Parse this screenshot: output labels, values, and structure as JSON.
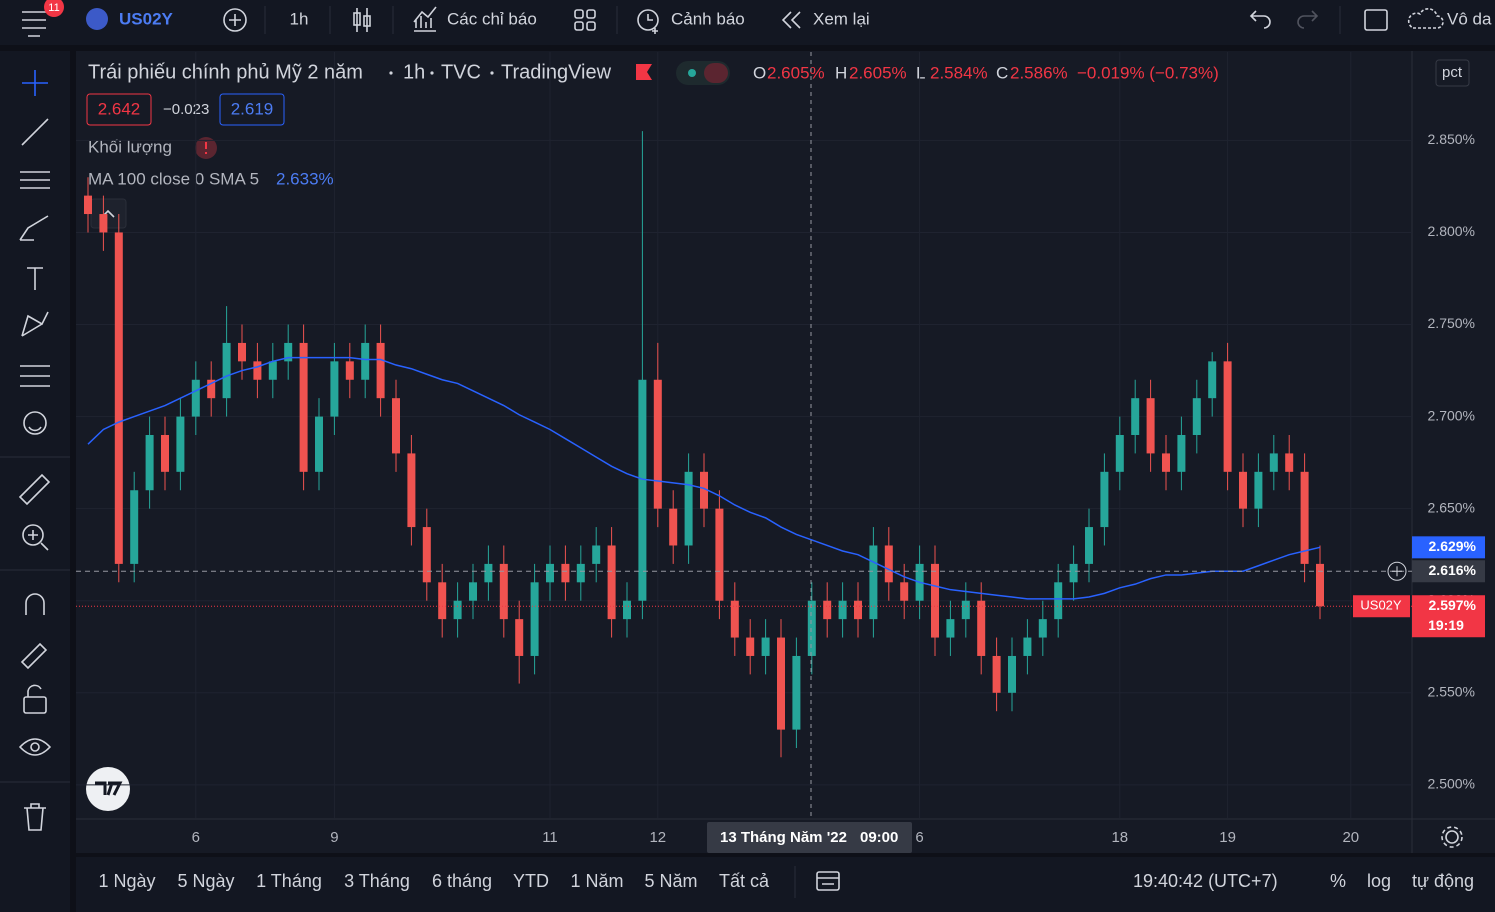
{
  "toolbar": {
    "badge": "11",
    "symbol": "US02Y",
    "interval": "1h",
    "indicators": "Các chỉ báo",
    "alerts": "Cảnh báo",
    "replay": "Xem lại",
    "layout": "Vô da"
  },
  "legend": {
    "title": "Trái phiếu chính phủ Mỹ 2 năm",
    "interval": "1h",
    "exchange": "TVC",
    "source": "TradingView",
    "ohlc": [
      {
        "key": "O",
        "text": "2.605%"
      },
      {
        "key": "H",
        "text": "2.605%"
      },
      {
        "key": "L",
        "text": "2.584%"
      },
      {
        "key": "C",
        "text": "2.586%"
      }
    ],
    "change": "−0.019% (−0.73%)",
    "bid": "2.642",
    "spread": "−0.023",
    "ask": "2.619",
    "volume": "Khối lượng",
    "ma_value": "2.633%",
    "unit": "pct"
  },
  "chart_data": {
    "type": "candlestick",
    "categories": [
      null,
      null,
      null,
      null,
      null,
      null,
      null,
      "6",
      null,
      null,
      null,
      null,
      null,
      null,
      null,
      null,
      "9",
      null,
      null,
      null,
      null,
      null,
      null,
      null,
      null,
      null,
      null,
      null,
      null,
      null,
      "11",
      null,
      null,
      null,
      null,
      null,
      null,
      "12",
      null,
      null,
      null,
      null,
      null,
      null,
      null,
      null,
      null,
      null,
      null,
      null,
      null,
      null,
      null,
      null,
      "6",
      null,
      null,
      null,
      null,
      null,
      null,
      null,
      null,
      null,
      null,
      null,
      null,
      "18",
      null,
      null,
      null,
      null,
      null,
      null,
      "19",
      null,
      null,
      null,
      null,
      null,
      null,
      null,
      "20"
    ],
    "open": [
      2.82,
      2.81,
      2.8,
      2.62,
      2.66,
      2.69,
      2.67,
      2.7,
      2.72,
      2.71,
      2.74,
      2.73,
      2.72,
      2.73,
      2.74,
      2.67,
      2.7,
      2.73,
      2.72,
      2.74,
      2.71,
      2.68,
      2.64,
      2.61,
      2.59,
      2.6,
      2.61,
      2.62,
      2.59,
      2.57,
      2.61,
      2.62,
      2.61,
      2.62,
      2.63,
      2.59,
      2.6,
      2.72,
      2.65,
      2.63,
      2.67,
      2.65,
      2.6,
      2.58,
      2.57,
      2.58,
      2.53,
      2.57,
      2.6,
      2.59,
      2.6,
      2.59,
      2.63,
      2.61,
      2.6,
      2.62,
      2.58,
      2.59,
      2.6,
      2.57,
      2.55,
      2.57,
      2.58,
      2.59,
      2.61,
      2.62,
      2.64,
      2.67,
      2.69,
      2.71,
      2.68,
      2.67,
      2.69,
      2.71,
      2.73,
      2.67,
      2.65,
      2.67,
      2.68,
      2.67,
      2.62,
      null,
      null
    ],
    "high": [
      2.83,
      2.82,
      2.81,
      2.67,
      2.7,
      2.7,
      2.71,
      2.73,
      2.73,
      2.76,
      2.75,
      2.74,
      2.74,
      2.75,
      2.75,
      2.71,
      2.74,
      2.74,
      2.75,
      2.75,
      2.72,
      2.69,
      2.65,
      2.62,
      2.61,
      2.62,
      2.63,
      2.63,
      2.6,
      2.62,
      2.63,
      2.63,
      2.63,
      2.64,
      2.64,
      2.61,
      2.855,
      2.74,
      2.66,
      2.68,
      2.68,
      2.66,
      2.61,
      2.59,
      2.59,
      2.59,
      2.58,
      2.61,
      2.61,
      2.61,
      2.61,
      2.64,
      2.64,
      2.62,
      2.63,
      2.63,
      2.6,
      2.61,
      2.61,
      2.58,
      2.58,
      2.59,
      2.6,
      2.62,
      2.63,
      2.65,
      2.68,
      2.7,
      2.72,
      2.72,
      2.69,
      2.7,
      2.72,
      2.735,
      2.74,
      2.68,
      2.68,
      2.69,
      2.69,
      2.68,
      2.63,
      null,
      null
    ],
    "low": [
      2.8,
      2.79,
      2.61,
      2.61,
      2.65,
      2.66,
      2.66,
      2.69,
      2.7,
      2.7,
      2.72,
      2.71,
      2.71,
      2.72,
      2.66,
      2.66,
      2.69,
      2.71,
      2.71,
      2.7,
      2.67,
      2.63,
      2.6,
      2.58,
      2.58,
      2.59,
      2.6,
      2.58,
      2.555,
      2.56,
      2.6,
      2.6,
      2.6,
      2.61,
      2.58,
      2.58,
      2.59,
      2.64,
      2.62,
      2.62,
      2.64,
      2.59,
      2.57,
      2.56,
      2.56,
      2.515,
      2.52,
      2.56,
      2.58,
      2.58,
      2.58,
      2.58,
      2.6,
      2.59,
      2.59,
      2.57,
      2.57,
      2.58,
      2.56,
      2.54,
      2.54,
      2.56,
      2.57,
      2.58,
      2.6,
      2.61,
      2.63,
      2.66,
      2.68,
      2.67,
      2.66,
      2.66,
      2.68,
      2.7,
      2.66,
      2.64,
      2.64,
      2.66,
      2.66,
      2.61,
      2.59,
      null,
      null
    ],
    "close": [
      2.81,
      2.8,
      2.62,
      2.66,
      2.69,
      2.67,
      2.7,
      2.72,
      2.71,
      2.74,
      2.73,
      2.72,
      2.73,
      2.74,
      2.67,
      2.7,
      2.73,
      2.72,
      2.74,
      2.71,
      2.68,
      2.64,
      2.61,
      2.59,
      2.6,
      2.61,
      2.62,
      2.59,
      2.57,
      2.61,
      2.62,
      2.61,
      2.62,
      2.63,
      2.59,
      2.6,
      2.72,
      2.65,
      2.63,
      2.67,
      2.65,
      2.6,
      2.58,
      2.57,
      2.58,
      2.53,
      2.57,
      2.6,
      2.59,
      2.6,
      2.59,
      2.63,
      2.61,
      2.6,
      2.62,
      2.58,
      2.59,
      2.6,
      2.57,
      2.55,
      2.57,
      2.58,
      2.59,
      2.61,
      2.62,
      2.64,
      2.67,
      2.69,
      2.71,
      2.68,
      2.67,
      2.69,
      2.71,
      2.73,
      2.67,
      2.65,
      2.67,
      2.68,
      2.67,
      2.62,
      2.597,
      null,
      null
    ],
    "series": [
      {
        "name": "MA 100 close 0 SMA 5",
        "color": "#2962ff",
        "values": [
          2.685,
          2.693,
          2.697,
          2.7,
          2.703,
          2.706,
          2.71,
          2.714,
          2.718,
          2.722,
          2.725,
          2.727,
          2.73,
          2.732,
          2.732,
          2.732,
          2.732,
          2.732,
          2.731,
          2.731,
          2.728,
          2.726,
          2.723,
          2.72,
          2.718,
          2.714,
          2.71,
          2.706,
          2.701,
          2.697,
          2.693,
          2.688,
          2.683,
          2.678,
          2.673,
          2.669,
          2.666,
          2.665,
          2.664,
          2.663,
          2.661,
          2.657,
          2.652,
          2.648,
          2.645,
          2.64,
          2.636,
          2.633,
          2.63,
          2.627,
          2.625,
          2.621,
          2.617,
          2.613,
          2.61,
          2.608,
          2.606,
          2.605,
          2.604,
          2.603,
          2.602,
          2.601,
          2.601,
          2.601,
          2.601,
          2.602,
          2.604,
          2.607,
          2.609,
          2.612,
          2.614,
          2.614,
          2.615,
          2.616,
          2.616,
          2.616,
          2.619,
          2.622,
          2.625,
          2.627,
          2.629,
          null,
          null
        ]
      }
    ],
    "up_color": "#26a69a",
    "down_color": "#ef5350",
    "ylim": [
      2.482,
      2.898
    ],
    "yticks": [
      {
        "value": 2.5,
        "label": "2.500%"
      },
      {
        "value": 2.55,
        "label": "2.550%"
      },
      {
        "value": 2.6,
        "label": "2.600%"
      },
      {
        "value": 2.65,
        "label": "2.650%"
      },
      {
        "value": 2.7,
        "label": "2.700%"
      },
      {
        "value": 2.75,
        "label": "2.750%"
      },
      {
        "value": 2.8,
        "label": "2.800%"
      },
      {
        "value": 2.85,
        "label": "2.850%"
      }
    ],
    "grid": true,
    "price_markers": [
      {
        "value": 2.629,
        "label": "2.629%",
        "color": "#2962ff"
      },
      {
        "value": 2.616,
        "label": "2.616%",
        "color": "#363a45",
        "line": "dashed"
      },
      {
        "value": 2.597,
        "label": "2.597%",
        "color": "#f23645",
        "line": "dotted",
        "name": "US02Y",
        "time": "19:19"
      }
    ],
    "crosshair_label": "13 Tháng Năm '22",
    "crosshair_time": "09:00"
  },
  "bottom": {
    "ranges": [
      "1 Ngày",
      "5 Ngày",
      "1 Tháng",
      "3 Tháng",
      "6 tháng",
      "YTD",
      "1 Năm",
      "5 Năm",
      "Tất cả"
    ],
    "clock": "19:40:42 (UTC+7)",
    "percent": "%",
    "log": "log",
    "auto": "tự động"
  }
}
